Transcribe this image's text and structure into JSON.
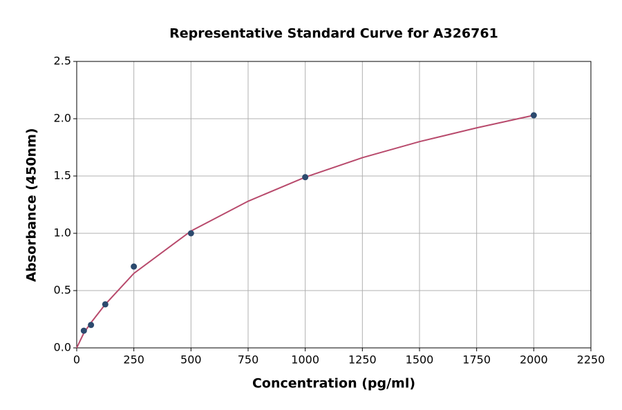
{
  "chart_data": {
    "type": "scatter",
    "title": "Representative Standard Curve for A326761",
    "x_label": "Concentration (pg/ml)",
    "y_label": "Absorbance (450nm)",
    "x": [
      31.25,
      62.5,
      125,
      250,
      500,
      1000,
      2000
    ],
    "values": [
      0.15,
      0.2,
      0.38,
      0.71,
      1.0,
      1.49,
      2.03
    ],
    "color": "#2c4a6e",
    "fit": {
      "type": "line",
      "color": "#b84a6c",
      "x": [
        0,
        31.25,
        62.5,
        125,
        250,
        500,
        750,
        1000,
        1250,
        1500,
        1750,
        2000
      ],
      "values": [
        0.0,
        0.13,
        0.22,
        0.38,
        0.65,
        1.02,
        1.28,
        1.49,
        1.66,
        1.8,
        1.92,
        2.03
      ]
    },
    "xlim": [
      0,
      2250
    ],
    "xticks": [
      0,
      250,
      500,
      750,
      1000,
      1250,
      1500,
      1750,
      2000,
      2250
    ],
    "ylim": [
      0,
      2.5
    ],
    "yticks": [
      {
        "value": 0,
        "label": "0.0"
      },
      0.5,
      {
        "value": 1,
        "label": "1.0"
      },
      1.5,
      {
        "value": 2,
        "label": "2.0"
      },
      2.5
    ],
    "grid": true
  }
}
